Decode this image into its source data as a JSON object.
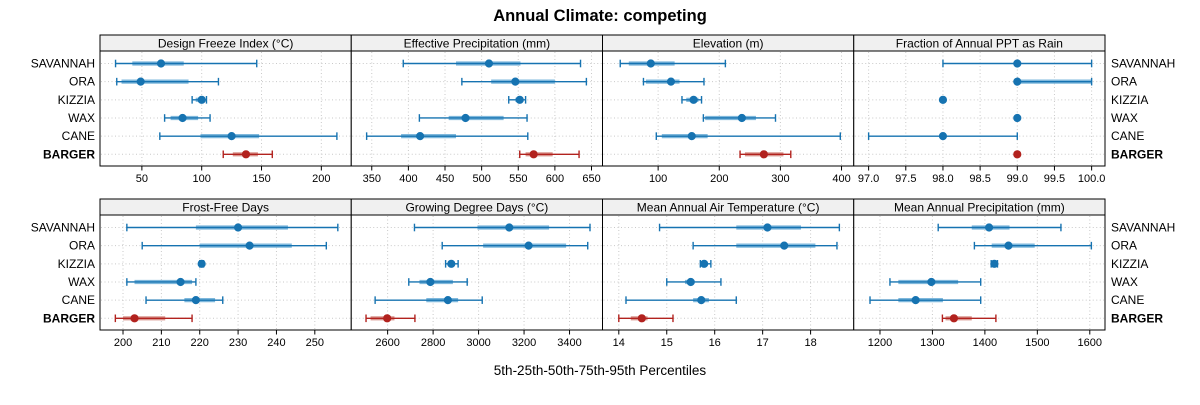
{
  "title": "Annual Climate: competing",
  "caption": "5th-25th-50th-75th-95th Percentiles",
  "sites": [
    "SAVANNAH",
    "ORA",
    "KIZZIA",
    "WAX",
    "CANE",
    "BARGER"
  ],
  "highlight_site": "BARGER",
  "colors": {
    "site_line": "#1673b1",
    "site_band": "#7fb8dc",
    "highlight_line": "#b2221e",
    "highlight_band": "#d9958e",
    "strip_bg": "#f0f0f0",
    "panel_border": "#000000",
    "grid": "#c9c9c9",
    "text": "#000000"
  },
  "chart_data": {
    "type": "percentile-dotplot-grid",
    "grid": [
      2,
      4
    ],
    "percentile_levels": [
      5,
      25,
      50,
      75,
      95
    ],
    "legend_position": "none",
    "grid_lines": "dotted",
    "panels": [
      {
        "title": "Design Freeze Index (°C)",
        "xlim": [
          15,
          225
        ],
        "tick_values": [
          50,
          100,
          150,
          200
        ],
        "tick_labels": [
          "50",
          "100",
          "150",
          "200"
        ],
        "series": [
          {
            "site": "SAVANNAH",
            "percentiles": [
              28,
              42,
              66,
              85,
              146
            ]
          },
          {
            "site": "ORA",
            "percentiles": [
              29,
              33,
              49,
              89,
              114
            ]
          },
          {
            "site": "KIZZIA",
            "percentiles": [
              92,
              95,
              100,
              103,
              104
            ]
          },
          {
            "site": "WAX",
            "percentiles": [
              69,
              74,
              84,
              97,
              107
            ]
          },
          {
            "site": "CANE",
            "percentiles": [
              65,
              99,
              125,
              148,
              213
            ]
          },
          {
            "site": "BARGER",
            "percentiles": [
              118,
              126,
              137,
              147,
              159
            ]
          }
        ]
      },
      {
        "title": "Effective Precipitation (mm)",
        "xlim": [
          322,
          665
        ],
        "tick_values": [
          350,
          400,
          450,
          500,
          550,
          600,
          650
        ],
        "tick_labels": [
          "350",
          "400",
          "450",
          "500",
          "550",
          "600",
          "650"
        ],
        "series": [
          {
            "site": "SAVANNAH",
            "percentiles": [
              393,
              465,
              510,
              553,
              635
            ]
          },
          {
            "site": "ORA",
            "percentiles": [
              473,
              513,
              546,
              600,
              643
            ]
          },
          {
            "site": "KIZZIA",
            "percentiles": [
              537,
              546,
              552,
              557,
              560
            ]
          },
          {
            "site": "WAX",
            "percentiles": [
              415,
              455,
              478,
              530,
              562
            ]
          },
          {
            "site": "CANE",
            "percentiles": [
              343,
              390,
              416,
              465,
              563
            ]
          },
          {
            "site": "BARGER",
            "percentiles": [
              552,
              560,
              571,
              597,
              633
            ]
          }
        ]
      },
      {
        "title": "Elevation (m)",
        "xlim": [
          9,
          420
        ],
        "tick_values": [
          100,
          200,
          300,
          400
        ],
        "tick_labels": [
          "100",
          "200",
          "300",
          "400"
        ],
        "series": [
          {
            "site": "SAVANNAH",
            "percentiles": [
              38,
              52,
              88,
              127,
              210
            ]
          },
          {
            "site": "ORA",
            "percentiles": [
              76,
              80,
              121,
              135,
              175
            ]
          },
          {
            "site": "KIZZIA",
            "percentiles": [
              139,
              146,
              158,
              166,
              171
            ]
          },
          {
            "site": "WAX",
            "percentiles": [
              174,
              177,
              237,
              260,
              292
            ]
          },
          {
            "site": "CANE",
            "percentiles": [
              97,
              106,
              155,
              181,
              398
            ]
          },
          {
            "site": "BARGER",
            "percentiles": [
              234,
              242,
              273,
              305,
              317
            ]
          }
        ]
      },
      {
        "title": "Fraction of Annual PPT as Rain",
        "xlim": [
          96.8,
          100.18
        ],
        "tick_values": [
          97.0,
          97.5,
          98.0,
          98.5,
          99.0,
          99.5,
          100.0
        ],
        "tick_labels": [
          "97.0",
          "97.5",
          "98.0",
          "98.5",
          "99.0",
          "99.5",
          "100.0"
        ],
        "series": [
          {
            "site": "SAVANNAH",
            "percentiles": [
              98,
              99,
              99,
              99,
              100
            ]
          },
          {
            "site": "ORA",
            "percentiles": [
              99,
              99,
              99,
              100,
              100
            ]
          },
          {
            "site": "KIZZIA",
            "percentiles": [
              98,
              98,
              98,
              98,
              98
            ]
          },
          {
            "site": "WAX",
            "percentiles": [
              99,
              99,
              99,
              99,
              99
            ]
          },
          {
            "site": "CANE",
            "percentiles": [
              97,
              98,
              98,
              98,
              99
            ]
          },
          {
            "site": "BARGER",
            "percentiles": [
              99,
              99,
              99,
              99,
              99
            ]
          }
        ]
      },
      {
        "title": "Frost-Free Days",
        "xlim": [
          194,
          259.5
        ],
        "tick_values": [
          200,
          210,
          220,
          230,
          240,
          250
        ],
        "tick_labels": [
          "200",
          "210",
          "220",
          "230",
          "240",
          "250"
        ],
        "series": [
          {
            "site": "SAVANNAH",
            "percentiles": [
              201,
              219,
              230,
              243,
              256
            ]
          },
          {
            "site": "ORA",
            "percentiles": [
              205,
              220,
              233,
              244,
              253
            ]
          },
          {
            "site": "KIZZIA",
            "percentiles": [
              220,
              220,
              220.5,
              221,
              221
            ]
          },
          {
            "site": "WAX",
            "percentiles": [
              201,
              203,
              215,
              218,
              219
            ]
          },
          {
            "site": "CANE",
            "percentiles": [
              206,
              216,
              219,
              224,
              226
            ]
          },
          {
            "site": "BARGER",
            "percentiles": [
              198,
              200,
              203,
              211,
              218
            ]
          }
        ]
      },
      {
        "title": "Growing Degree Days (°C)",
        "xlim": [
          2440,
          3545
        ],
        "tick_values": [
          2600,
          2800,
          3000,
          3200,
          3400
        ],
        "tick_labels": [
          "2600",
          "2800",
          "3000",
          "3200",
          "3400"
        ],
        "series": [
          {
            "site": "SAVANNAH",
            "percentiles": [
              2718,
              2995,
              3135,
              3310,
              3490
            ]
          },
          {
            "site": "ORA",
            "percentiles": [
              2840,
              3020,
              3220,
              3385,
              3480
            ]
          },
          {
            "site": "KIZZIA",
            "percentiles": [
              2855,
              2865,
              2880,
              2895,
              2910
            ]
          },
          {
            "site": "WAX",
            "percentiles": [
              2693,
              2740,
              2788,
              2887,
              2950
            ]
          },
          {
            "site": "CANE",
            "percentiles": [
              2545,
              2770,
              2865,
              2910,
              3016
            ]
          },
          {
            "site": "BARGER",
            "percentiles": [
              2505,
              2525,
              2598,
              2630,
              2720
            ]
          }
        ]
      },
      {
        "title": "Mean Annual Air Temperature (°C)",
        "xlim": [
          13.66,
          18.9
        ],
        "tick_values": [
          14,
          15,
          16,
          17,
          18
        ],
        "tick_labels": [
          "14",
          "15",
          "16",
          "17",
          "18"
        ],
        "series": [
          {
            "site": "SAVANNAH",
            "percentiles": [
              14.85,
              16.45,
              17.1,
              17.8,
              18.6
            ]
          },
          {
            "site": "ORA",
            "percentiles": [
              15.55,
              16.45,
              17.45,
              18.1,
              18.55
            ]
          },
          {
            "site": "KIZZIA",
            "percentiles": [
              15.7,
              15.73,
              15.78,
              15.85,
              15.92
            ]
          },
          {
            "site": "WAX",
            "percentiles": [
              15.0,
              15.38,
              15.5,
              15.58,
              16.13
            ]
          },
          {
            "site": "CANE",
            "percentiles": [
              14.15,
              15.55,
              15.72,
              15.88,
              16.45
            ]
          },
          {
            "site": "BARGER",
            "percentiles": [
              14.0,
              14.25,
              14.48,
              14.6,
              15.13
            ]
          }
        ]
      },
      {
        "title": "Mean Annual Precipitation (mm)",
        "xlim": [
          1150,
          1629
        ],
        "tick_values": [
          1200,
          1300,
          1400,
          1500,
          1600
        ],
        "tick_labels": [
          "1200",
          "1300",
          "1400",
          "1500",
          "1600"
        ],
        "series": [
          {
            "site": "SAVANNAH",
            "percentiles": [
              1311,
              1375,
              1408,
              1447,
              1545
            ]
          },
          {
            "site": "ORA",
            "percentiles": [
              1380,
              1413,
              1445,
              1495,
              1603
            ]
          },
          {
            "site": "KIZZIA",
            "percentiles": [
              1412,
              1415,
              1418,
              1421,
              1424
            ]
          },
          {
            "site": "WAX",
            "percentiles": [
              1219,
              1235,
              1298,
              1349,
              1392
            ]
          },
          {
            "site": "CANE",
            "percentiles": [
              1181,
              1235,
              1268,
              1320,
              1392
            ]
          },
          {
            "site": "BARGER",
            "percentiles": [
              1319,
              1325,
              1341,
              1375,
              1421
            ]
          }
        ]
      }
    ]
  }
}
